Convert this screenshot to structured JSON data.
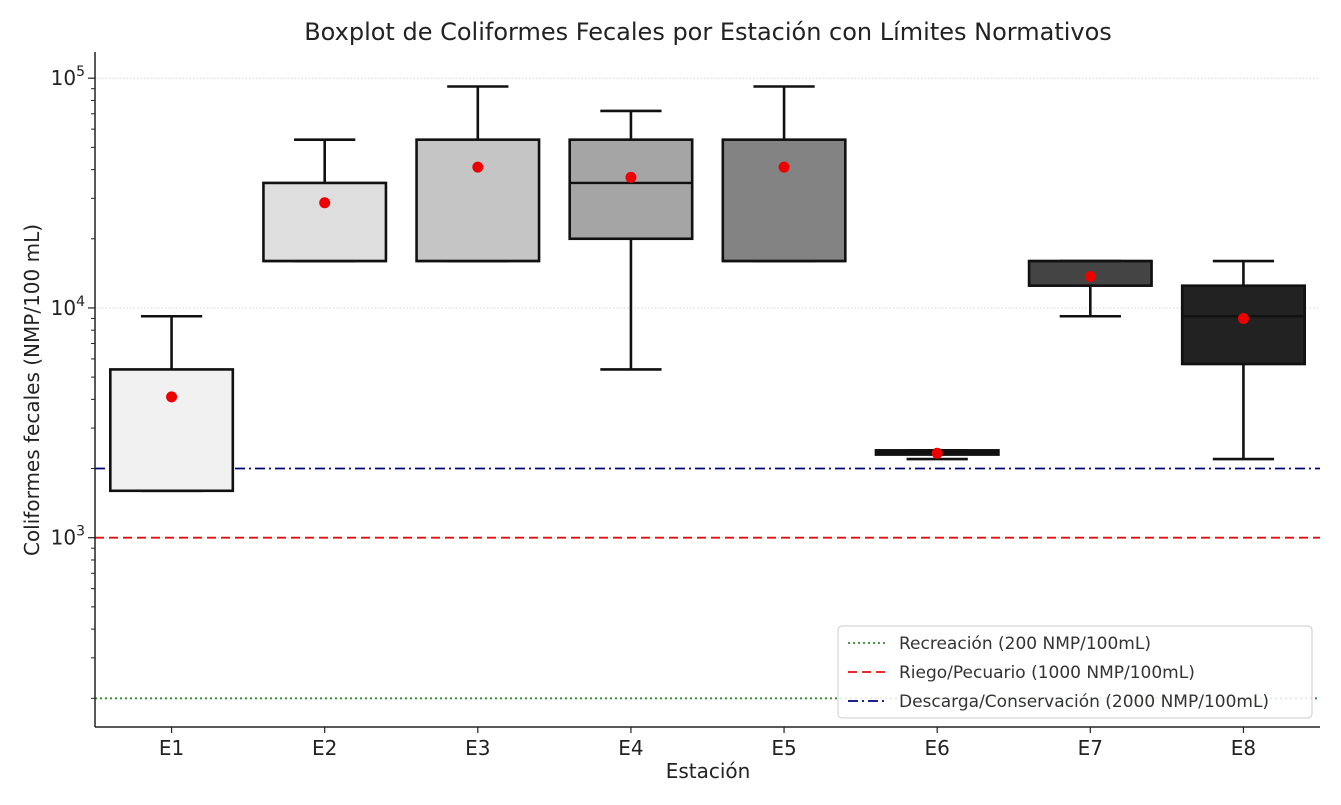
{
  "chart_data": {
    "type": "box",
    "title": "Boxplot de Coliformes Fecales por Estación con Límites Normativos",
    "xlabel": "Estación",
    "ylabel": "Coliformes fecales (NMP/100 mL)",
    "yscale": "log",
    "ylim": [
      150,
      130000
    ],
    "y_major_ticks": [
      {
        "value": 1000,
        "base": "10",
        "exp": "3"
      },
      {
        "value": 10000,
        "base": "10",
        "exp": "4"
      },
      {
        "value": 100000,
        "base": "10",
        "exp": "5"
      }
    ],
    "grid": "horizontal dotted at major ticks",
    "categories": [
      "E1",
      "E2",
      "E3",
      "E4",
      "E5",
      "E6",
      "E7",
      "E8"
    ],
    "boxes": [
      {
        "station": "E1",
        "whisker_low": 1600,
        "q1": 1600,
        "median": 1600,
        "q3": 5400,
        "whisker_high": 9200,
        "mean": 4100,
        "fill": "#f1f1f1"
      },
      {
        "station": "E2",
        "whisker_low": 16000,
        "q1": 16000,
        "median": 16000,
        "q3": 35000,
        "whisker_high": 54000,
        "mean": 28700,
        "fill": "#dedede"
      },
      {
        "station": "E3",
        "whisker_low": 16000,
        "q1": 16000,
        "median": 16000,
        "q3": 54000,
        "whisker_high": 92000,
        "mean": 41000,
        "fill": "#c5c5c5"
      },
      {
        "station": "E4",
        "whisker_low": 5400,
        "q1": 20000,
        "median": 35000,
        "q3": 54000,
        "whisker_high": 72000,
        "mean": 37000,
        "fill": "#a5a5a5"
      },
      {
        "station": "E5",
        "whisker_low": 16000,
        "q1": 16000,
        "median": 16000,
        "q3": 54000,
        "whisker_high": 92000,
        "mean": 41000,
        "fill": "#838383"
      },
      {
        "station": "E6",
        "whisker_low": 2200,
        "q1": 2300,
        "median": 2350,
        "q3": 2400,
        "whisker_high": 2400,
        "mean": 2330,
        "fill": "#5c5c5c"
      },
      {
        "station": "E7",
        "whisker_low": 9200,
        "q1": 12500,
        "median": 16000,
        "q3": 16000,
        "whisker_high": 16000,
        "mean": 13700,
        "fill": "#444444"
      },
      {
        "station": "E8",
        "whisker_low": 2200,
        "q1": 5700,
        "median": 9200,
        "q3": 12500,
        "whisker_high": 16000,
        "mean": 9000,
        "fill": "#222222"
      }
    ],
    "mean_marker_color": "#ee0000",
    "reference_lines": [
      {
        "label": "Recreación (200 NMP/100mL)",
        "value": 200,
        "color": "#2e8b2e",
        "style": "dotted"
      },
      {
        "label": "Riego/Pecuario (1000 NMP/100mL)",
        "value": 1000,
        "color": "#dd1111",
        "style": "dashed"
      },
      {
        "label": "Descarga/Conservación (2000 NMP/100mL)",
        "value": 2000,
        "color": "#00007a",
        "style": "dashdot"
      }
    ],
    "legend_position": "lower-right"
  }
}
